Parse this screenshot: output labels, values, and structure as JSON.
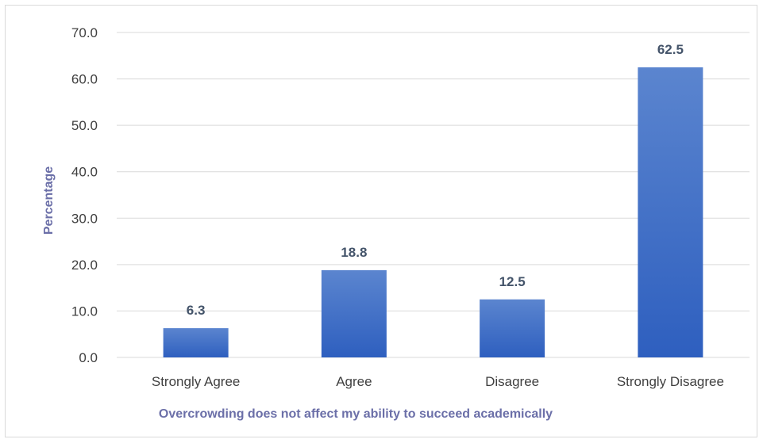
{
  "chart_data": {
    "type": "bar",
    "title": "",
    "categories": [
      "Strongly Agree",
      "Agree",
      "Disagree",
      "Strongly Disagree"
    ],
    "values": [
      6.3,
      18.8,
      12.5,
      62.5
    ],
    "value_labels": [
      "6.3",
      "18.8",
      "12.5",
      "62.5"
    ],
    "xlabel": "Overcrowding does not affect my ability to succeed academically",
    "ylabel": "Percentage",
    "ylim": [
      0,
      70
    ],
    "yticks": [
      "0.0",
      "10.0",
      "20.0",
      "30.0",
      "40.0",
      "50.0",
      "60.0",
      "70.0"
    ],
    "grid": true,
    "legend": "none",
    "colors": {
      "bar_top": "#5b85cf",
      "bar_bottom": "#2e5fbf",
      "grid": "#d9d9d9",
      "axis_title": "#6b6fa8",
      "data_label": "#44546a"
    }
  }
}
